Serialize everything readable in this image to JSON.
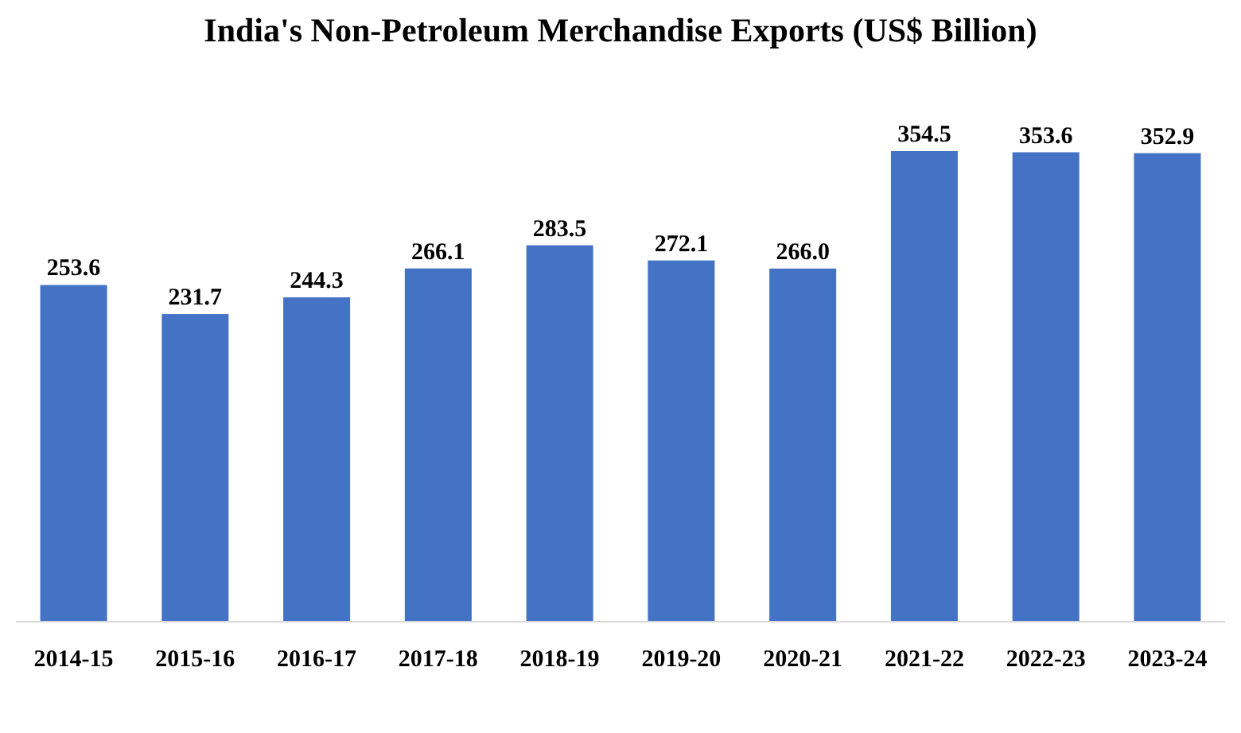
{
  "chart_data": {
    "type": "bar",
    "title": "India's Non-Petroleum Merchandise Exports (US$ Billion)",
    "categories": [
      "2014-15",
      "2015-16",
      "2016-17",
      "2017-18",
      "2018-19",
      "2019-20",
      "2020-21",
      "2021-22",
      "2022-23",
      "2023-24"
    ],
    "values": [
      253.6,
      231.7,
      244.3,
      266.1,
      283.5,
      272.1,
      266.0,
      354.5,
      353.6,
      352.9
    ],
    "color": "#4472c4",
    "value_labels": [
      "253.6",
      "231.7",
      "244.3",
      "266.1",
      "283.5",
      "272.1",
      "266.0",
      "354.5",
      "353.6",
      "352.9"
    ]
  }
}
